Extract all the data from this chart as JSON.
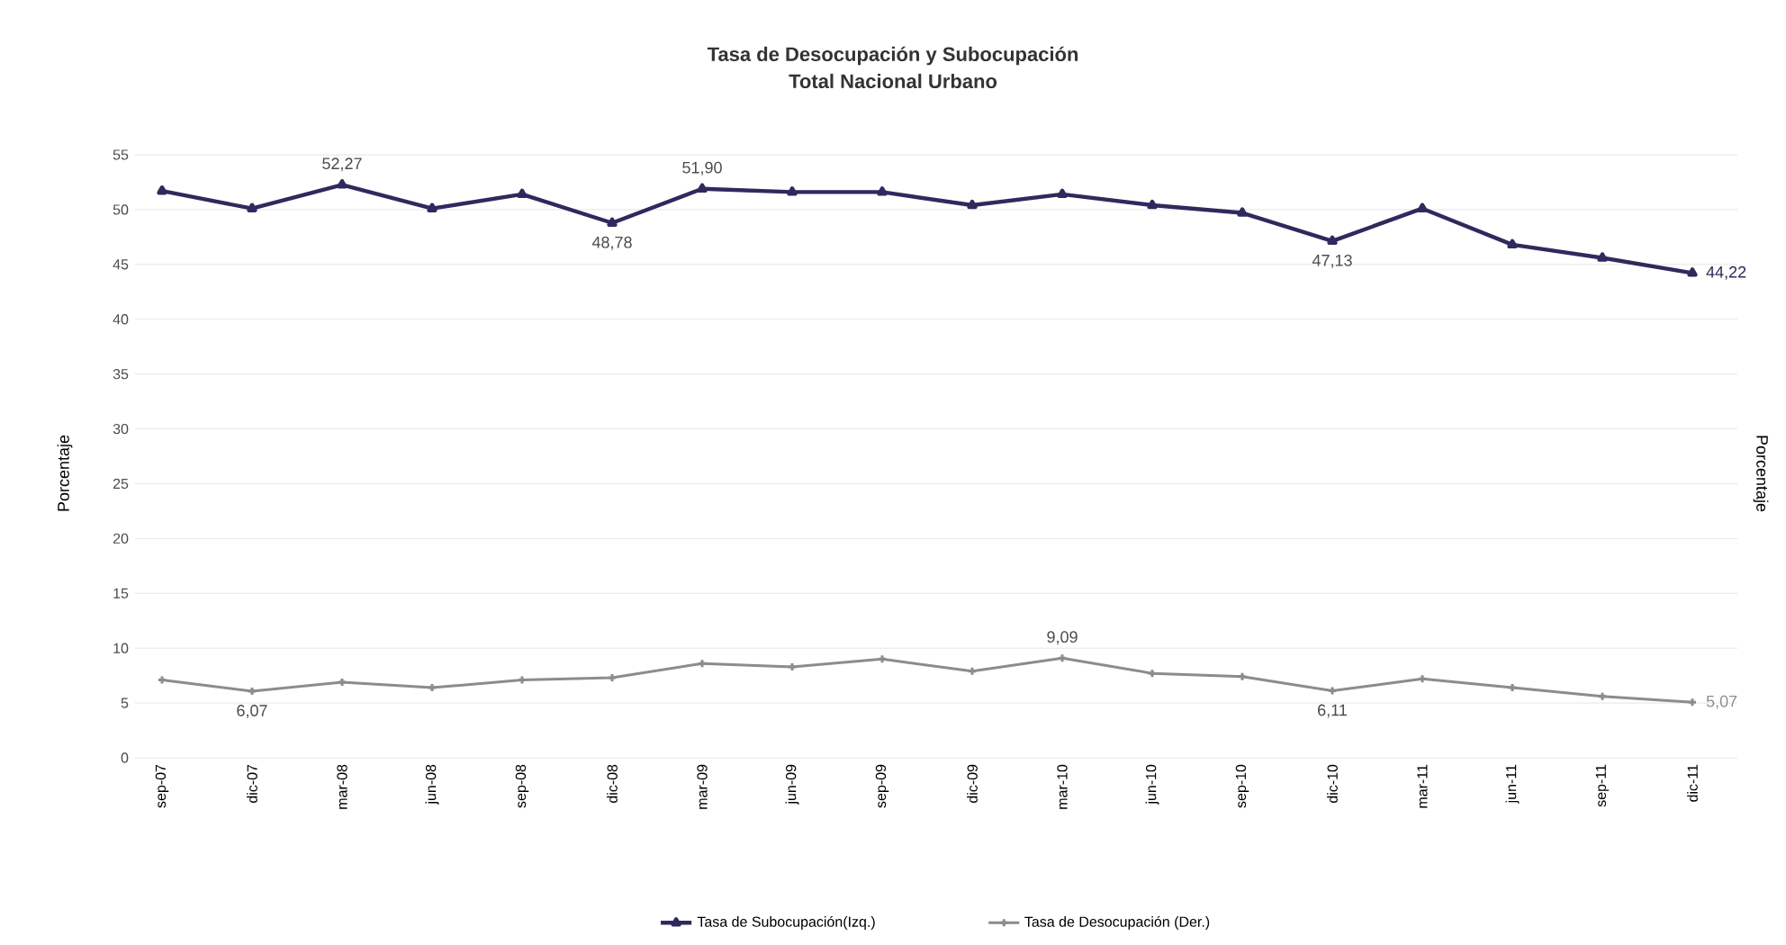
{
  "chart_data": {
    "type": "line",
    "title": "Tasa de Desocupación y Subocupación",
    "subtitle": "Total Nacional Urbano",
    "ylabel": "Porcentaje",
    "y2label": "Porcentaje",
    "categories": [
      "sep-07",
      "dic-07",
      "mar-08",
      "jun-08",
      "sep-08",
      "dic-08",
      "mar-09",
      "jun-09",
      "sep-09",
      "dic-09",
      "mar-10",
      "jun-10",
      "sep-10",
      "dic-10",
      "mar-11",
      "jun-11",
      "sep-11",
      "dic-11"
    ],
    "series": [
      {
        "name": "Tasa de Subocupación(Izq.)",
        "color": "#2e2a5e",
        "marker": "triangle",
        "values": [
          51.7,
          50.1,
          52.27,
          50.1,
          51.4,
          48.78,
          51.9,
          51.6,
          51.6,
          50.4,
          51.4,
          50.4,
          49.7,
          47.13,
          50.1,
          46.8,
          45.6,
          44.22
        ],
        "value_labels": [
          null,
          null,
          "52,27",
          null,
          null,
          "48,78",
          "51,90",
          null,
          null,
          null,
          null,
          null,
          null,
          "47,13",
          null,
          null,
          null,
          "44,22"
        ]
      },
      {
        "name": "Tasa de Desocupación (Der.)",
        "color": "#8c8c8c",
        "marker": "cross",
        "values": [
          7.1,
          6.07,
          6.9,
          6.4,
          7.1,
          7.3,
          8.6,
          8.3,
          9.0,
          7.9,
          9.09,
          7.7,
          7.4,
          6.11,
          7.2,
          6.4,
          5.6,
          5.07
        ],
        "value_labels": [
          null,
          "6,07",
          null,
          null,
          null,
          null,
          null,
          null,
          null,
          null,
          "9,09",
          null,
          null,
          "6,11",
          null,
          null,
          null,
          "5,07"
        ]
      }
    ],
    "ylim": [
      0,
      55
    ],
    "yticks": [
      0,
      5,
      10,
      15,
      20,
      25,
      30,
      35,
      40,
      45,
      50,
      55
    ],
    "grid": "y",
    "legend": "bottom"
  }
}
